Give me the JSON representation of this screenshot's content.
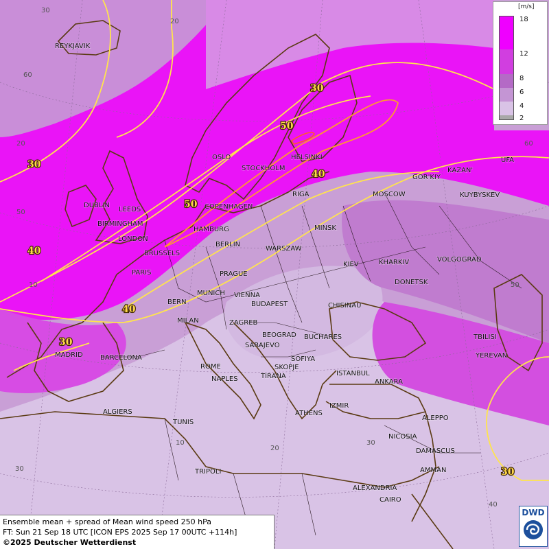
{
  "legend": {
    "unit": "[m/s]",
    "ticks": [
      "18",
      "12",
      "8",
      "6",
      "4",
      "2"
    ],
    "colors": [
      "#ef00ff",
      "#d13ee0",
      "#b46ac6",
      "#c495d4",
      "#d9c3e6",
      "#a8a8a8"
    ]
  },
  "footer": {
    "line1": "Ensemble mean + spread of Mean wind speed 250 hPa",
    "line2": "FT: Sun 21 Sep 18 UTC [ICON EPS 2025 Sep 17 00UTC +114h]",
    "line3": "©2025 Deutscher Wetterdienst"
  },
  "logo": {
    "text": "DWD"
  },
  "cities": {
    "reykjavik": "REYKJAVIK",
    "dublin": "DUBLIN",
    "leeds": "LEEDS",
    "birmingham": "BIRMINGHAM",
    "london": "LONDON",
    "brussels": "BRUSSELS",
    "paris": "PARIS",
    "oslo": "OSLO",
    "stockholm": "STOCKHOLM",
    "helsinki": "HELSINKI",
    "copenhagen": "COPENHAGEN",
    "hamburg": "HAMBURG",
    "berlin": "BERLIN",
    "riga": "RIGA",
    "minsk": "MINSK",
    "moscow": "MOSCOW",
    "gorkiy": "GOR'KIY",
    "kazan": "KAZAN'",
    "ufa": "UFA",
    "kuybyshev": "KUYBYSKEV",
    "warszaw": "WARSZAW",
    "kiev": "KIEV",
    "kharkiv": "KHARKIV",
    "volgograd": "VOLGOGRAD",
    "donetsk": "DONETSK",
    "prague": "PRAGUE",
    "munich": "MUNICH",
    "vienna": "VIENNA",
    "budapest": "BUDAPEST",
    "chisinau": "CHISINAU",
    "bern": "BERN",
    "milan": "MILAN",
    "zagreb": "ZAGREB",
    "beograd": "BEOGRAD",
    "bucharest": "BUCHARES",
    "sarajevo": "SARAJEVO",
    "sofiya": "SOFIYA",
    "skopje": "SKOPJE",
    "tirana": "TIRANA",
    "rome": "ROME",
    "naples": "NAPLES",
    "madrid": "MADRID",
    "barcelona": "BARCELONA",
    "istanbul": "ISTANBUL",
    "ankara": "ANKARA",
    "izmir": "IZMIR",
    "athens": "ATHENS",
    "algiers": "ALGIERS",
    "tunis": "TUNIS",
    "tripoli": "TRIPOLI",
    "tbilisi": "TBILISI",
    "yerevan": "YEREVAN",
    "aleppo": "ALEPPO",
    "nicosia": "NICOSIA",
    "damascus": "DAMASCUS",
    "amman": "AMMAN",
    "alexandria": "ALEXANDRIA",
    "cairo": "CAIRO"
  },
  "contour_labels": {
    "c30_north": "30",
    "c50_scand": "50",
    "c40_russia": "40",
    "c30_atl": "30",
    "c50_north_sea": "50",
    "c40_atl": "40",
    "c40_alps": "40",
    "c30_iberia": "30",
    "c30_mideast": "30"
  },
  "grid_labels": {
    "lon_30w": "30",
    "lon_20w_top": "20",
    "lat_60": "60",
    "lat_50w": "50",
    "lon_20w": "20",
    "lon_10w": "10",
    "lon_10e": "10",
    "lon_20e": "20",
    "lon_30e": "30",
    "lon_40e": "40",
    "lat_60e": "60",
    "lat_50e": "50",
    "lat_30w": "30"
  }
}
